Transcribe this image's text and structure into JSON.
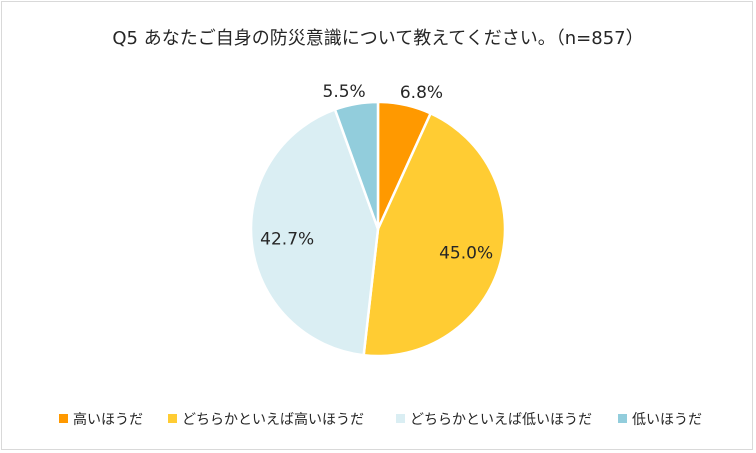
{
  "chart_data": {
    "type": "pie",
    "title": "Q5 あなたご自身の防災意識について教えてください。（n=857）",
    "categories": [
      "高いほうだ",
      "どちらかといえば高いほうだ",
      "どちらかといえば低いほうだ",
      "低いほうだ"
    ],
    "values": [
      6.8,
      45.0,
      42.7,
      5.5
    ],
    "labels": [
      "6.8%",
      "45.0%",
      "42.7%",
      "5.5%"
    ],
    "colors": [
      "#FF9900",
      "#FFCC33",
      "#DAEEF3",
      "#92CDDC"
    ],
    "legend_position": "bottom",
    "start_angle": "12 o'clock",
    "direction": "clockwise"
  }
}
